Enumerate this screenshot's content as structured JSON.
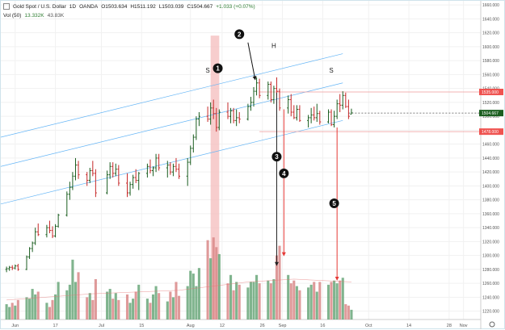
{
  "header": {
    "symbol": "Gold Spot / U.S. Dollar",
    "timeframe": "1D",
    "source": "OANDA",
    "open": "O1503.634",
    "high": "H1511.192",
    "low": "L1503.039",
    "close": "C1504.667",
    "change": "+1.033 (+0.07%)"
  },
  "volume_legend": {
    "label": "Vol (50)",
    "v1": "13.332K",
    "v2": "43.83K"
  },
  "chart_data": {
    "type": "ohlc",
    "title": "Gold Spot / U.S. Dollar · 1D · OANDA",
    "y_ticks": [
      1220,
      1240,
      1260,
      1280,
      1300,
      1320,
      1340,
      1360,
      1380,
      1400,
      1420,
      1440,
      1460,
      1480,
      1500,
      1520,
      1540,
      1560,
      1580,
      1600,
      1620,
      1640,
      1660
    ],
    "y_tick_labels": [
      "1220.000",
      "1240.000",
      "1260.000",
      "1280.000",
      "1300.000",
      "1320.000",
      "1340.000",
      "1360.000",
      "1380.000",
      "1400.000",
      "1420.000",
      "1440.000",
      "1460.000",
      "1480.000",
      "1500.000",
      "1520.000",
      "1540.000",
      "1560.000",
      "1580.000",
      "1600.000",
      "1620.000",
      "1640.000",
      "1660.000"
    ],
    "ylim": [
      1208,
      1666
    ],
    "x_labels": [
      {
        "label": "Jun",
        "day": 3
      },
      {
        "label": "17",
        "day": 17
      },
      {
        "label": "Jul",
        "day": 33
      },
      {
        "label": "15",
        "day": 47
      },
      {
        "label": "Aug",
        "day": 64
      },
      {
        "label": "12",
        "day": 75
      },
      {
        "label": "26",
        "day": 89
      },
      {
        "label": "Sep",
        "day": 96
      },
      {
        "label": "16",
        "day": 110
      },
      {
        "label": "Oct",
        "day": 126
      },
      {
        "label": "14",
        "day": 140
      },
      {
        "label": "28",
        "day": 154
      },
      {
        "label": "Nov",
        "day": 159
      }
    ],
    "x_range_days": [
      -2,
      165
    ],
    "bars": [
      [
        0,
        1280,
        1284,
        1276,
        1281
      ],
      [
        1,
        1281,
        1285,
        1278,
        1283
      ],
      [
        2,
        1283,
        1286,
        1279,
        1282
      ],
      [
        3,
        1282,
        1287,
        1280,
        1285
      ],
      [
        4,
        1285,
        1288,
        1278,
        1280
      ],
      [
        7,
        1280,
        1300,
        1279,
        1298
      ],
      [
        8,
        1298,
        1312,
        1295,
        1310
      ],
      [
        9,
        1310,
        1320,
        1305,
        1318
      ],
      [
        10,
        1318,
        1340,
        1315,
        1334
      ],
      [
        11,
        1334,
        1346,
        1328,
        1330
      ],
      [
        14,
        1330,
        1344,
        1326,
        1340
      ],
      [
        15,
        1340,
        1350,
        1332,
        1336
      ],
      [
        16,
        1336,
        1342,
        1325,
        1328
      ],
      [
        17,
        1328,
        1345,
        1326,
        1342
      ],
      [
        18,
        1342,
        1360,
        1340,
        1358
      ],
      [
        21,
        1358,
        1392,
        1356,
        1388
      ],
      [
        22,
        1388,
        1406,
        1380,
        1398
      ],
      [
        23,
        1398,
        1420,
        1394,
        1414
      ],
      [
        24,
        1414,
        1440,
        1408,
        1430
      ],
      [
        25,
        1430,
        1436,
        1410,
        1416
      ],
      [
        28,
        1416,
        1420,
        1400,
        1408
      ],
      [
        29,
        1408,
        1426,
        1404,
        1422
      ],
      [
        30,
        1422,
        1436,
        1414,
        1418
      ],
      [
        31,
        1418,
        1424,
        1384,
        1390
      ],
      [
        35,
        1390,
        1422,
        1388,
        1416
      ],
      [
        36,
        1416,
        1434,
        1410,
        1428
      ],
      [
        37,
        1428,
        1434,
        1412,
        1418
      ],
      [
        38,
        1418,
        1432,
        1414,
        1424
      ],
      [
        39,
        1424,
        1430,
        1400,
        1404
      ],
      [
        42,
        1404,
        1418,
        1384,
        1390
      ],
      [
        43,
        1390,
        1406,
        1386,
        1402
      ],
      [
        44,
        1402,
        1416,
        1396,
        1412
      ],
      [
        45,
        1412,
        1424,
        1404,
        1408
      ],
      [
        46,
        1408,
        1420,
        1394,
        1418
      ],
      [
        49,
        1418,
        1432,
        1412,
        1428
      ],
      [
        50,
        1428,
        1438,
        1418,
        1422
      ],
      [
        51,
        1422,
        1428,
        1414,
        1426
      ],
      [
        52,
        1426,
        1446,
        1420,
        1440
      ],
      [
        53,
        1440,
        1446,
        1422,
        1426
      ],
      [
        56,
        1426,
        1436,
        1412,
        1430
      ],
      [
        57,
        1430,
        1434,
        1416,
        1420
      ],
      [
        58,
        1420,
        1432,
        1414,
        1428
      ],
      [
        59,
        1428,
        1440,
        1420,
        1424
      ],
      [
        60,
        1424,
        1432,
        1410,
        1414
      ],
      [
        63,
        1414,
        1440,
        1400,
        1434
      ],
      [
        64,
        1434,
        1458,
        1430,
        1454
      ],
      [
        65,
        1454,
        1474,
        1448,
        1470
      ],
      [
        66,
        1470,
        1500,
        1466,
        1496
      ],
      [
        67,
        1496,
        1506,
        1486,
        1500
      ],
      [
        70,
        1500,
        1514,
        1492,
        1496
      ],
      [
        71,
        1496,
        1520,
        1488,
        1512
      ],
      [
        72,
        1512,
        1524,
        1496,
        1504
      ],
      [
        73,
        1504,
        1512,
        1478,
        1484
      ],
      [
        74,
        1484,
        1510,
        1480,
        1506
      ],
      [
        77,
        1506,
        1520,
        1496,
        1500
      ],
      [
        78,
        1500,
        1512,
        1490,
        1508
      ],
      [
        79,
        1508,
        1512,
        1490,
        1494
      ],
      [
        80,
        1494,
        1510,
        1486,
        1498
      ],
      [
        81,
        1498,
        1506,
        1490,
        1496
      ],
      [
        84,
        1496,
        1518,
        1494,
        1514
      ],
      [
        85,
        1514,
        1528,
        1508,
        1520
      ],
      [
        86,
        1520,
        1542,
        1514,
        1536
      ],
      [
        87,
        1536,
        1556,
        1530,
        1548
      ],
      [
        88,
        1548,
        1554,
        1526,
        1530
      ],
      [
        91,
        1530,
        1550,
        1524,
        1546
      ],
      [
        92,
        1546,
        1550,
        1520,
        1524
      ],
      [
        93,
        1524,
        1544,
        1518,
        1540
      ],
      [
        94,
        1540,
        1556,
        1530,
        1536
      ],
      [
        95,
        1536,
        1540,
        1508,
        1512
      ],
      [
        98,
        1512,
        1530,
        1504,
        1524
      ],
      [
        99,
        1524,
        1532,
        1500,
        1506
      ],
      [
        100,
        1506,
        1516,
        1496,
        1498
      ],
      [
        101,
        1498,
        1516,
        1494,
        1510
      ],
      [
        102,
        1510,
        1516,
        1492,
        1494
      ],
      [
        105,
        1494,
        1502,
        1484,
        1498
      ],
      [
        106,
        1498,
        1512,
        1490,
        1502
      ],
      [
        107,
        1502,
        1514,
        1494,
        1498
      ],
      [
        108,
        1498,
        1518,
        1492,
        1504
      ],
      [
        109,
        1504,
        1508,
        1488,
        1492
      ],
      [
        112,
        1492,
        1510,
        1490,
        1506
      ],
      [
        113,
        1506,
        1510,
        1486,
        1488
      ],
      [
        114,
        1488,
        1508,
        1484,
        1500
      ],
      [
        115,
        1500,
        1524,
        1496,
        1518
      ],
      [
        116,
        1518,
        1532,
        1506,
        1516
      ],
      [
        117,
        1516,
        1536,
        1510,
        1530
      ],
      [
        118,
        1530,
        1534,
        1512,
        1514
      ],
      [
        119,
        1514,
        1524,
        1496,
        1500
      ],
      [
        120,
        1503,
        1511,
        1503,
        1505
      ]
    ],
    "volumes": [
      [
        0,
        1230
      ],
      [
        1,
        1226
      ],
      [
        2,
        1232
      ],
      [
        3,
        1228
      ],
      [
        4,
        1236
      ],
      [
        7,
        1240
      ],
      [
        8,
        1238
      ],
      [
        9,
        1252
      ],
      [
        10,
        1244
      ],
      [
        11,
        1248
      ],
      [
        14,
        1232
      ],
      [
        15,
        1226
      ],
      [
        16,
        1236
      ],
      [
        17,
        1244
      ],
      [
        18,
        1262
      ],
      [
        21,
        1250
      ],
      [
        22,
        1258
      ],
      [
        23,
        1294
      ],
      [
        24,
        1262
      ],
      [
        25,
        1276
      ],
      [
        28,
        1240
      ],
      [
        29,
        1246
      ],
      [
        30,
        1236
      ],
      [
        31,
        1266
      ],
      [
        35,
        1248
      ],
      [
        36,
        1252
      ],
      [
        37,
        1238
      ],
      [
        38,
        1246
      ],
      [
        39,
        1236
      ],
      [
        42,
        1244
      ],
      [
        43,
        1232
      ],
      [
        44,
        1238
      ],
      [
        45,
        1248
      ],
      [
        46,
        1258
      ],
      [
        49,
        1238
      ],
      [
        50,
        1232
      ],
      [
        51,
        1244
      ],
      [
        52,
        1256
      ],
      [
        53,
        1246
      ],
      [
        56,
        1234
      ],
      [
        57,
        1248
      ],
      [
        58,
        1240
      ],
      [
        59,
        1262
      ],
      [
        60,
        1242
      ],
      [
        63,
        1256
      ],
      [
        64,
        1278
      ],
      [
        65,
        1274
      ],
      [
        66,
        1256
      ],
      [
        67,
        1282
      ],
      [
        70,
        1322
      ],
      [
        71,
        1296
      ],
      [
        72,
        1326
      ],
      [
        73,
        1312
      ],
      [
        74,
        1302
      ],
      [
        77,
        1260
      ],
      [
        78,
        1272
      ],
      [
        79,
        1250
      ],
      [
        80,
        1262
      ],
      [
        81,
        1258
      ],
      [
        84,
        1254
      ],
      [
        85,
        1262
      ],
      [
        86,
        1262
      ],
      [
        87,
        1272
      ],
      [
        88,
        1260
      ],
      [
        91,
        1264
      ],
      [
        92,
        1260
      ],
      [
        93,
        1266
      ],
      [
        94,
        1300
      ],
      [
        95,
        1314
      ],
      [
        98,
        1272
      ],
      [
        99,
        1260
      ],
      [
        100,
        1264
      ],
      [
        101,
        1256
      ],
      [
        102,
        1250
      ],
      [
        105,
        1254
      ],
      [
        106,
        1258
      ],
      [
        107,
        1262
      ],
      [
        108,
        1248
      ],
      [
        109,
        1262
      ],
      [
        112,
        1258
      ],
      [
        113,
        1262
      ],
      [
        114,
        1264
      ],
      [
        115,
        1260
      ],
      [
        116,
        1264
      ],
      [
        117,
        1268
      ],
      [
        118,
        1230
      ],
      [
        119,
        1228
      ],
      [
        120,
        1222
      ]
    ],
    "volume_ma": [
      [
        0,
        1236
      ],
      [
        30,
        1245
      ],
      [
        60,
        1250
      ],
      [
        84,
        1262
      ],
      [
        100,
        1266
      ],
      [
        120,
        1262
      ]
    ],
    "channel_lines": [
      {
        "points": [
          [
            -2,
            1470
          ],
          [
            117,
            1590
          ]
        ]
      },
      {
        "points": [
          [
            -2,
            1428
          ],
          [
            117,
            1548
          ]
        ]
      },
      {
        "points": [
          [
            -2,
            1374
          ],
          [
            117,
            1494
          ]
        ]
      }
    ],
    "levels": [
      {
        "price": 1535.0,
        "label": "1535.000",
        "from_day": 88
      },
      {
        "price": 1478.0,
        "label": "1478.000",
        "from_day": 88
      },
      {
        "price": 1504.667,
        "label": "1504.667",
        "from_day": 119
      }
    ],
    "shaded_band": {
      "from_day": 71,
      "to_day": 74
    },
    "pattern_labels": [
      {
        "text": "S",
        "day": 70,
        "price": 1563
      },
      {
        "text": "H",
        "day": 93,
        "price": 1598
      },
      {
        "text": "S",
        "day": 113,
        "price": 1563
      }
    ],
    "markers": [
      {
        "num": "1",
        "day": 73.5,
        "price": 1569
      },
      {
        "num": "2",
        "day": 81,
        "price": 1618
      },
      {
        "num": "3",
        "day": 94,
        "price": 1442
      },
      {
        "num": "4",
        "day": 96.5,
        "price": 1418
      },
      {
        "num": "5",
        "day": 114,
        "price": 1375
      }
    ],
    "arrows": [
      {
        "from": [
          84,
          1606
        ],
        "to": [
          86.5,
          1553
        ],
        "color": "#111111"
      },
      {
        "from": [
          94,
          1534
        ],
        "to": [
          94,
          1286
        ],
        "color": "#222222"
      },
      {
        "from": [
          96.5,
          1510
        ],
        "to": [
          96.5,
          1300
        ],
        "color": "#e53935"
      },
      {
        "from": [
          115,
          1484
        ],
        "to": [
          115,
          1265
        ],
        "color": "#e53935"
      }
    ],
    "colors": {
      "up_bar": "#1b5e20",
      "down_bar": "#c62828",
      "vol_up": "#6aa77a",
      "vol_down": "#d98888",
      "channel": "#64b5f6",
      "level_line": "#ef9a9a",
      "shade": "#f4bcbc",
      "marker": "#111111"
    },
    "grid": true,
    "legend": "top-left"
  }
}
